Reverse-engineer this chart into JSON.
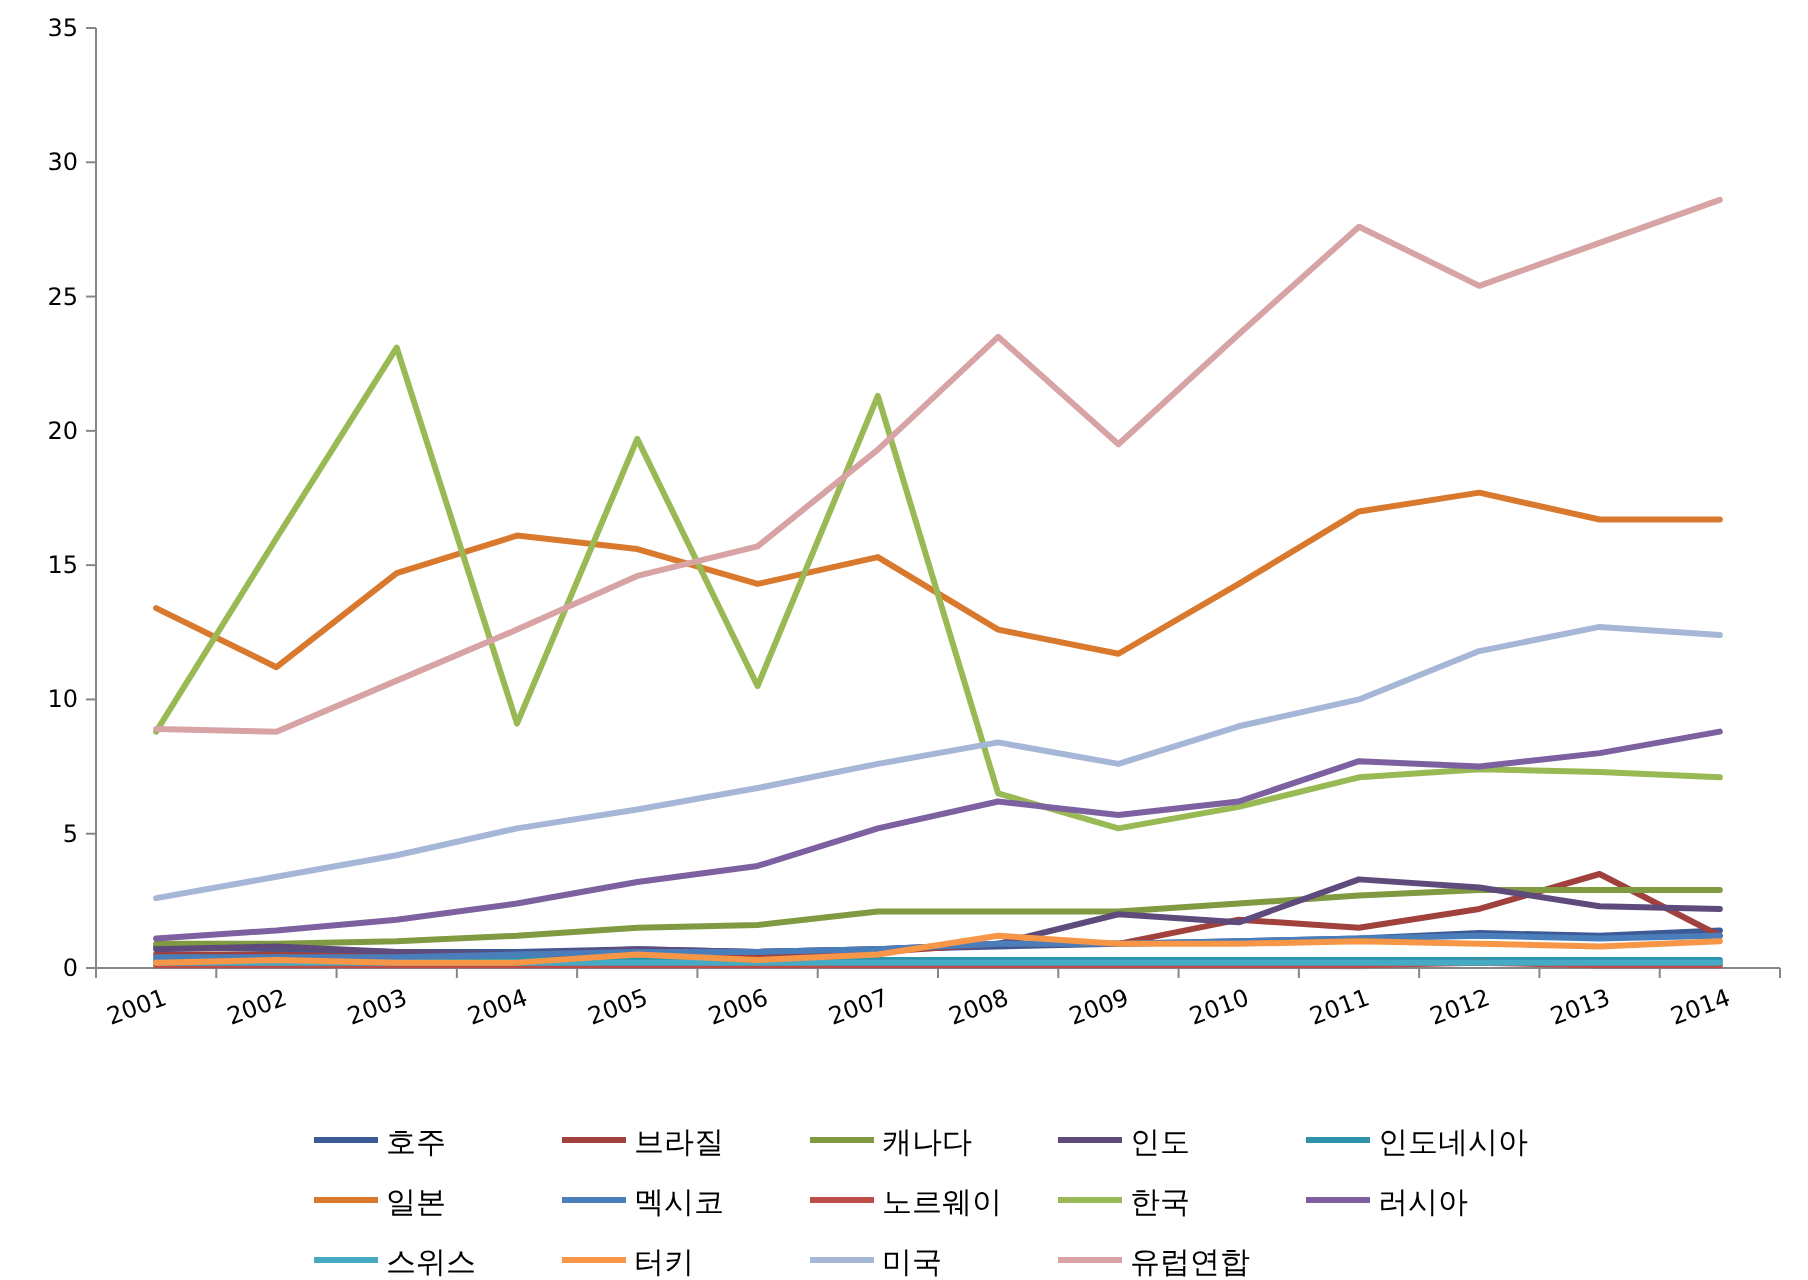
{
  "chart_data": {
    "type": "line",
    "categories": [
      "2001",
      "2002",
      "2003",
      "2004",
      "2005",
      "2006",
      "2007",
      "2008",
      "2009",
      "2010",
      "2011",
      "2012",
      "2013",
      "2014"
    ],
    "ylim": [
      0,
      35
    ],
    "yticks": [
      0,
      5,
      10,
      15,
      20,
      25,
      30,
      35
    ],
    "grid": false,
    "legend": "bottom",
    "marker": "none",
    "line_style": "solid",
    "series": [
      {
        "name": "호주",
        "color": "#3c5a96",
        "values": [
          0.8,
          0.7,
          0.6,
          0.6,
          0.7,
          0.6,
          0.7,
          0.8,
          0.9,
          1.0,
          1.1,
          1.3,
          1.2,
          1.4
        ]
      },
      {
        "name": "브라질",
        "color": "#a0413e",
        "values": [
          0.5,
          0.5,
          0.4,
          0.4,
          0.5,
          0.4,
          0.6,
          0.9,
          0.9,
          1.8,
          1.5,
          2.2,
          3.5,
          1.2
        ]
      },
      {
        "name": "캐나다",
        "color": "#7f9a41",
        "values": [
          0.9,
          0.9,
          1.0,
          1.2,
          1.5,
          1.6,
          2.1,
          2.1,
          2.1,
          2.4,
          2.7,
          2.9,
          2.9,
          2.9
        ]
      },
      {
        "name": "인도",
        "color": "#5e4b7c",
        "values": [
          0.7,
          0.8,
          0.6,
          0.5,
          0.7,
          0.6,
          0.7,
          0.9,
          2.0,
          1.7,
          3.3,
          3.0,
          2.3,
          2.2
        ]
      },
      {
        "name": "인도네시아",
        "color": "#2d93ad",
        "values": [
          0.3,
          0.3,
          0.3,
          0.3,
          0.3,
          0.3,
          0.3,
          0.3,
          0.3,
          0.3,
          0.3,
          0.3,
          0.3,
          0.3
        ]
      },
      {
        "name": "일본",
        "color": "#d9792e",
        "values": [
          13.4,
          11.2,
          14.7,
          16.1,
          15.6,
          14.3,
          15.3,
          12.6,
          11.7,
          14.3,
          17.0,
          17.7,
          16.7,
          16.7
        ]
      },
      {
        "name": "멕시코",
        "color": "#4a7ebb",
        "values": [
          0.4,
          0.4,
          0.4,
          0.5,
          0.6,
          0.6,
          0.7,
          0.9,
          0.9,
          1.0,
          1.1,
          1.2,
          1.1,
          1.2
        ]
      },
      {
        "name": "노르웨이",
        "color": "#be4b48",
        "values": [
          0.1,
          0.1,
          0.1,
          0.1,
          0.1,
          0.1,
          0.1,
          0.1,
          0.1,
          0.1,
          0.1,
          0.2,
          0.1,
          0.1
        ]
      },
      {
        "name": "한국",
        "color": "#98b954",
        "values": [
          8.8,
          16.0,
          23.1,
          9.1,
          19.7,
          10.5,
          21.3,
          6.5,
          5.2,
          6.0,
          7.1,
          7.4,
          7.3,
          7.1
        ]
      },
      {
        "name": "러시아",
        "color": "#7d60a0",
        "values": [
          1.1,
          1.4,
          1.8,
          2.4,
          3.2,
          3.8,
          5.2,
          6.2,
          5.7,
          6.2,
          7.7,
          7.5,
          8.0,
          8.8
        ]
      },
      {
        "name": "스위스",
        "color": "#46aac5",
        "values": [
          0.2,
          0.2,
          0.2,
          0.2,
          0.2,
          0.2,
          0.2,
          0.2,
          0.2,
          0.2,
          0.2,
          0.2,
          0.2,
          0.2
        ]
      },
      {
        "name": "터키",
        "color": "#f79646",
        "values": [
          0.2,
          0.3,
          0.2,
          0.2,
          0.5,
          0.3,
          0.5,
          1.2,
          0.9,
          0.9,
          1.0,
          0.9,
          0.8,
          1.0
        ]
      },
      {
        "name": "미국",
        "color": "#a5b6d6",
        "values": [
          2.6,
          3.4,
          4.2,
          5.2,
          5.9,
          6.7,
          7.6,
          8.4,
          7.6,
          9.0,
          10.0,
          11.8,
          12.7,
          12.4
        ]
      },
      {
        "name": "유럽연합",
        "color": "#d7a3a5",
        "values": [
          8.9,
          8.8,
          10.7,
          12.6,
          14.6,
          15.7,
          19.3,
          23.5,
          19.5,
          23.6,
          27.6,
          25.4,
          27.0,
          28.6
        ]
      }
    ]
  }
}
